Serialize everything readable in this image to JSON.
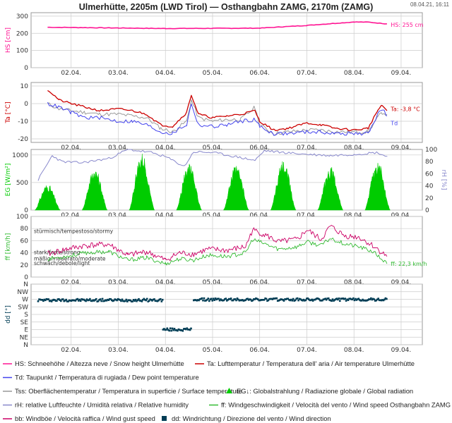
{
  "title": "Ulmerhütte, 2205m (LWD Tirol) — Osthangbahn ZAMG, 2170m (ZAMG)",
  "timestamp": "08.04.21, 16:11",
  "colors": {
    "hs": "#ff1493",
    "ta": "#cc0000",
    "td": "#4444ee",
    "tss": "#999999",
    "eg": "#00cc00",
    "rh": "#8888cc",
    "ff": "#33bb33",
    "bb": "#cc0066",
    "dd": "#003d55",
    "grid": "#cccccc"
  },
  "x_ticks": [
    "02.04.",
    "03.04.",
    "04.04.",
    "05.04.",
    "06.04.",
    "07.04.",
    "08.04.",
    "09.04."
  ],
  "chart_data": [
    {
      "type": "line",
      "panel": "snow",
      "ylabel": "HS [cm]",
      "ylim": [
        0,
        320
      ],
      "yticks": [
        0,
        100,
        200,
        300
      ],
      "x": [
        1.5,
        2.0,
        3.0,
        4.0,
        5.0,
        6.0,
        6.5,
        7.0,
        7.5,
        8.0,
        8.3,
        8.7
      ],
      "series": [
        {
          "name": "HS",
          "values": [
            235,
            234,
            231,
            228,
            229,
            230,
            238,
            246,
            256,
            266,
            265,
            255
          ]
        }
      ],
      "annotation": "HS: 255 cm"
    },
    {
      "type": "line",
      "panel": "temperature",
      "ylabel": "Ta [°C]",
      "ylim": [
        -22,
        12
      ],
      "yticks": [
        -20,
        -10,
        0,
        10
      ],
      "x": [
        1.5,
        1.75,
        2.0,
        2.3,
        2.6,
        3.0,
        3.3,
        3.6,
        3.9,
        4.15,
        4.3,
        4.45,
        4.55,
        4.7,
        5.0,
        5.3,
        5.6,
        5.9,
        6.0,
        6.3,
        6.6,
        7.0,
        7.3,
        7.6,
        8.0,
        8.3,
        8.5,
        8.6,
        8.7
      ],
      "series": [
        {
          "name": "Ta",
          "values": [
            8,
            2,
            0,
            -2,
            -4,
            -3,
            -4,
            -6,
            -12,
            -13,
            -9,
            -5,
            5,
            -6,
            -8,
            -7,
            -6,
            -4,
            -10,
            -15,
            -14,
            -11,
            -12,
            -14,
            -15,
            -14,
            -4,
            -1,
            -4
          ]
        },
        {
          "name": "Td",
          "values": [
            0,
            -2,
            -5,
            -8,
            -8,
            -10,
            -10,
            -12,
            -16,
            -17,
            -14,
            -12,
            0,
            -12,
            -13,
            -12,
            -10,
            -9,
            -13,
            -17,
            -17,
            -16,
            -16,
            -17,
            -17,
            -17,
            -6,
            -3,
            -7
          ]
        },
        {
          "name": "Tss",
          "values": [
            0,
            -3,
            -4,
            -5,
            -6,
            -6,
            -7,
            -8,
            -14,
            -16,
            -13,
            -10,
            2,
            -8,
            -10,
            -9,
            -9,
            -2,
            -12,
            -17,
            -16,
            -15,
            -15,
            -16,
            -16,
            -16,
            -8,
            -5,
            -6
          ]
        }
      ],
      "annotations": [
        "Ta: -3,8 °C",
        "Td"
      ]
    },
    {
      "type": "area",
      "panel": "radiation",
      "ylabel": "EG [W/m²]",
      "ylabel_right": "rH [%]",
      "ylim": [
        0,
        1100
      ],
      "yticks": [
        0,
        500,
        1000
      ],
      "ylim_right": [
        0,
        100
      ],
      "yticks_right": [
        0,
        20,
        40,
        60,
        80,
        100
      ],
      "days": [
        1.5,
        2.5,
        3.5,
        4.5,
        5.5,
        6.5,
        7.5,
        8.5
      ],
      "peaks": [
        480,
        780,
        1030,
        850,
        820,
        900,
        800,
        900
      ],
      "rh_x": [
        1.3,
        1.6,
        1.8,
        2.2,
        2.8,
        3.2,
        3.7,
        4.0,
        4.4,
        4.6,
        5.0,
        5.5,
        5.9,
        6.1,
        6.5,
        7.0,
        7.5,
        8.0,
        8.5,
        8.7
      ],
      "rh_values": [
        50,
        90,
        80,
        78,
        85,
        100,
        95,
        88,
        72,
        96,
        95,
        88,
        82,
        98,
        95,
        92,
        90,
        92,
        95,
        88
      ]
    },
    {
      "type": "line",
      "panel": "wind",
      "ylabel": "ff [km/h]",
      "ylim": [
        0,
        100
      ],
      "yticks": [
        0,
        20,
        40,
        60,
        80,
        100
      ],
      "zones": [
        "stürmisch/tempestoso/stormy",
        "stark/forte/strong",
        "mäßig/moderato/moderate",
        "schwach/debole/light"
      ],
      "x": [
        1.5,
        1.9,
        2.3,
        2.8,
        3.2,
        3.6,
        4.0,
        4.3,
        4.6,
        4.9,
        5.3,
        5.7,
        5.85,
        6.1,
        6.4,
        6.8,
        7.0,
        7.3,
        7.5,
        7.8,
        8.1,
        8.4,
        8.7
      ],
      "series": [
        {
          "name": "bb",
          "values": [
            38,
            46,
            52,
            54,
            36,
            42,
            28,
            40,
            38,
            46,
            44,
            50,
            78,
            70,
            58,
            62,
            78,
            62,
            84,
            68,
            66,
            52,
            34
          ]
        },
        {
          "name": "ff",
          "values": [
            30,
            34,
            40,
            42,
            28,
            32,
            22,
            30,
            28,
            36,
            34,
            40,
            62,
            55,
            46,
            50,
            58,
            52,
            64,
            55,
            50,
            42,
            22
          ]
        }
      ],
      "annotation": "ff: 22,3 km/h"
    },
    {
      "type": "scatter",
      "panel": "direction",
      "ylabel": "dd [°]",
      "yticks": [
        "N",
        "NW",
        "W",
        "SW",
        "S",
        "SE",
        "E",
        "NE",
        "N"
      ],
      "segments": [
        {
          "x": [
            1.3,
            3.95
          ],
          "dir": 265
        },
        {
          "x": [
            3.95,
            4.55
          ],
          "dir": 90
        },
        {
          "x": [
            4.6,
            8.7
          ],
          "dir": 268
        }
      ]
    }
  ],
  "legend": [
    {
      "symbol": "line",
      "color": "#ff1493",
      "text": "HS: Schneehöhe / Altezza neve / Snow height  Ulmerhütte"
    },
    {
      "symbol": "line",
      "color": "#cc0000",
      "text": "Ta: Lufttemperatur / Temperatura dell' aria / Air temperature  Ulmerhütte"
    },
    {
      "symbol": "line",
      "color": "#4444ee",
      "text": "Td: Taupunkt / Temperatura di rugiada / Dew point temperature"
    },
    {
      "symbol": "line",
      "color": "#999999",
      "text": "Tss: Oberflächentemperatur / Temperatura in superficie / Surface temperature"
    },
    {
      "symbol": "marker",
      "color": "#00cc00",
      "text": "EG↓: Globalstrahlung / Radiazione globale / Global radiation"
    },
    {
      "symbol": "line",
      "color": "#8888cc",
      "text": "rH: relative Luftfeuchte / Umidità relativa / Relative humidity"
    },
    {
      "symbol": "line",
      "color": "#33bb33",
      "text": "ff: Windgeschwindigkeit / Velocità del vento / Wind speed  Osthangbahn ZAMG"
    },
    {
      "symbol": "line",
      "color": "#cc0066",
      "text": "bb: Windböe / Velocità raffica / Wind gust speed"
    },
    {
      "symbol": "square",
      "color": "#003d55",
      "text": "dd: Windrichtung / Direzione del vento / Wind direction"
    }
  ]
}
